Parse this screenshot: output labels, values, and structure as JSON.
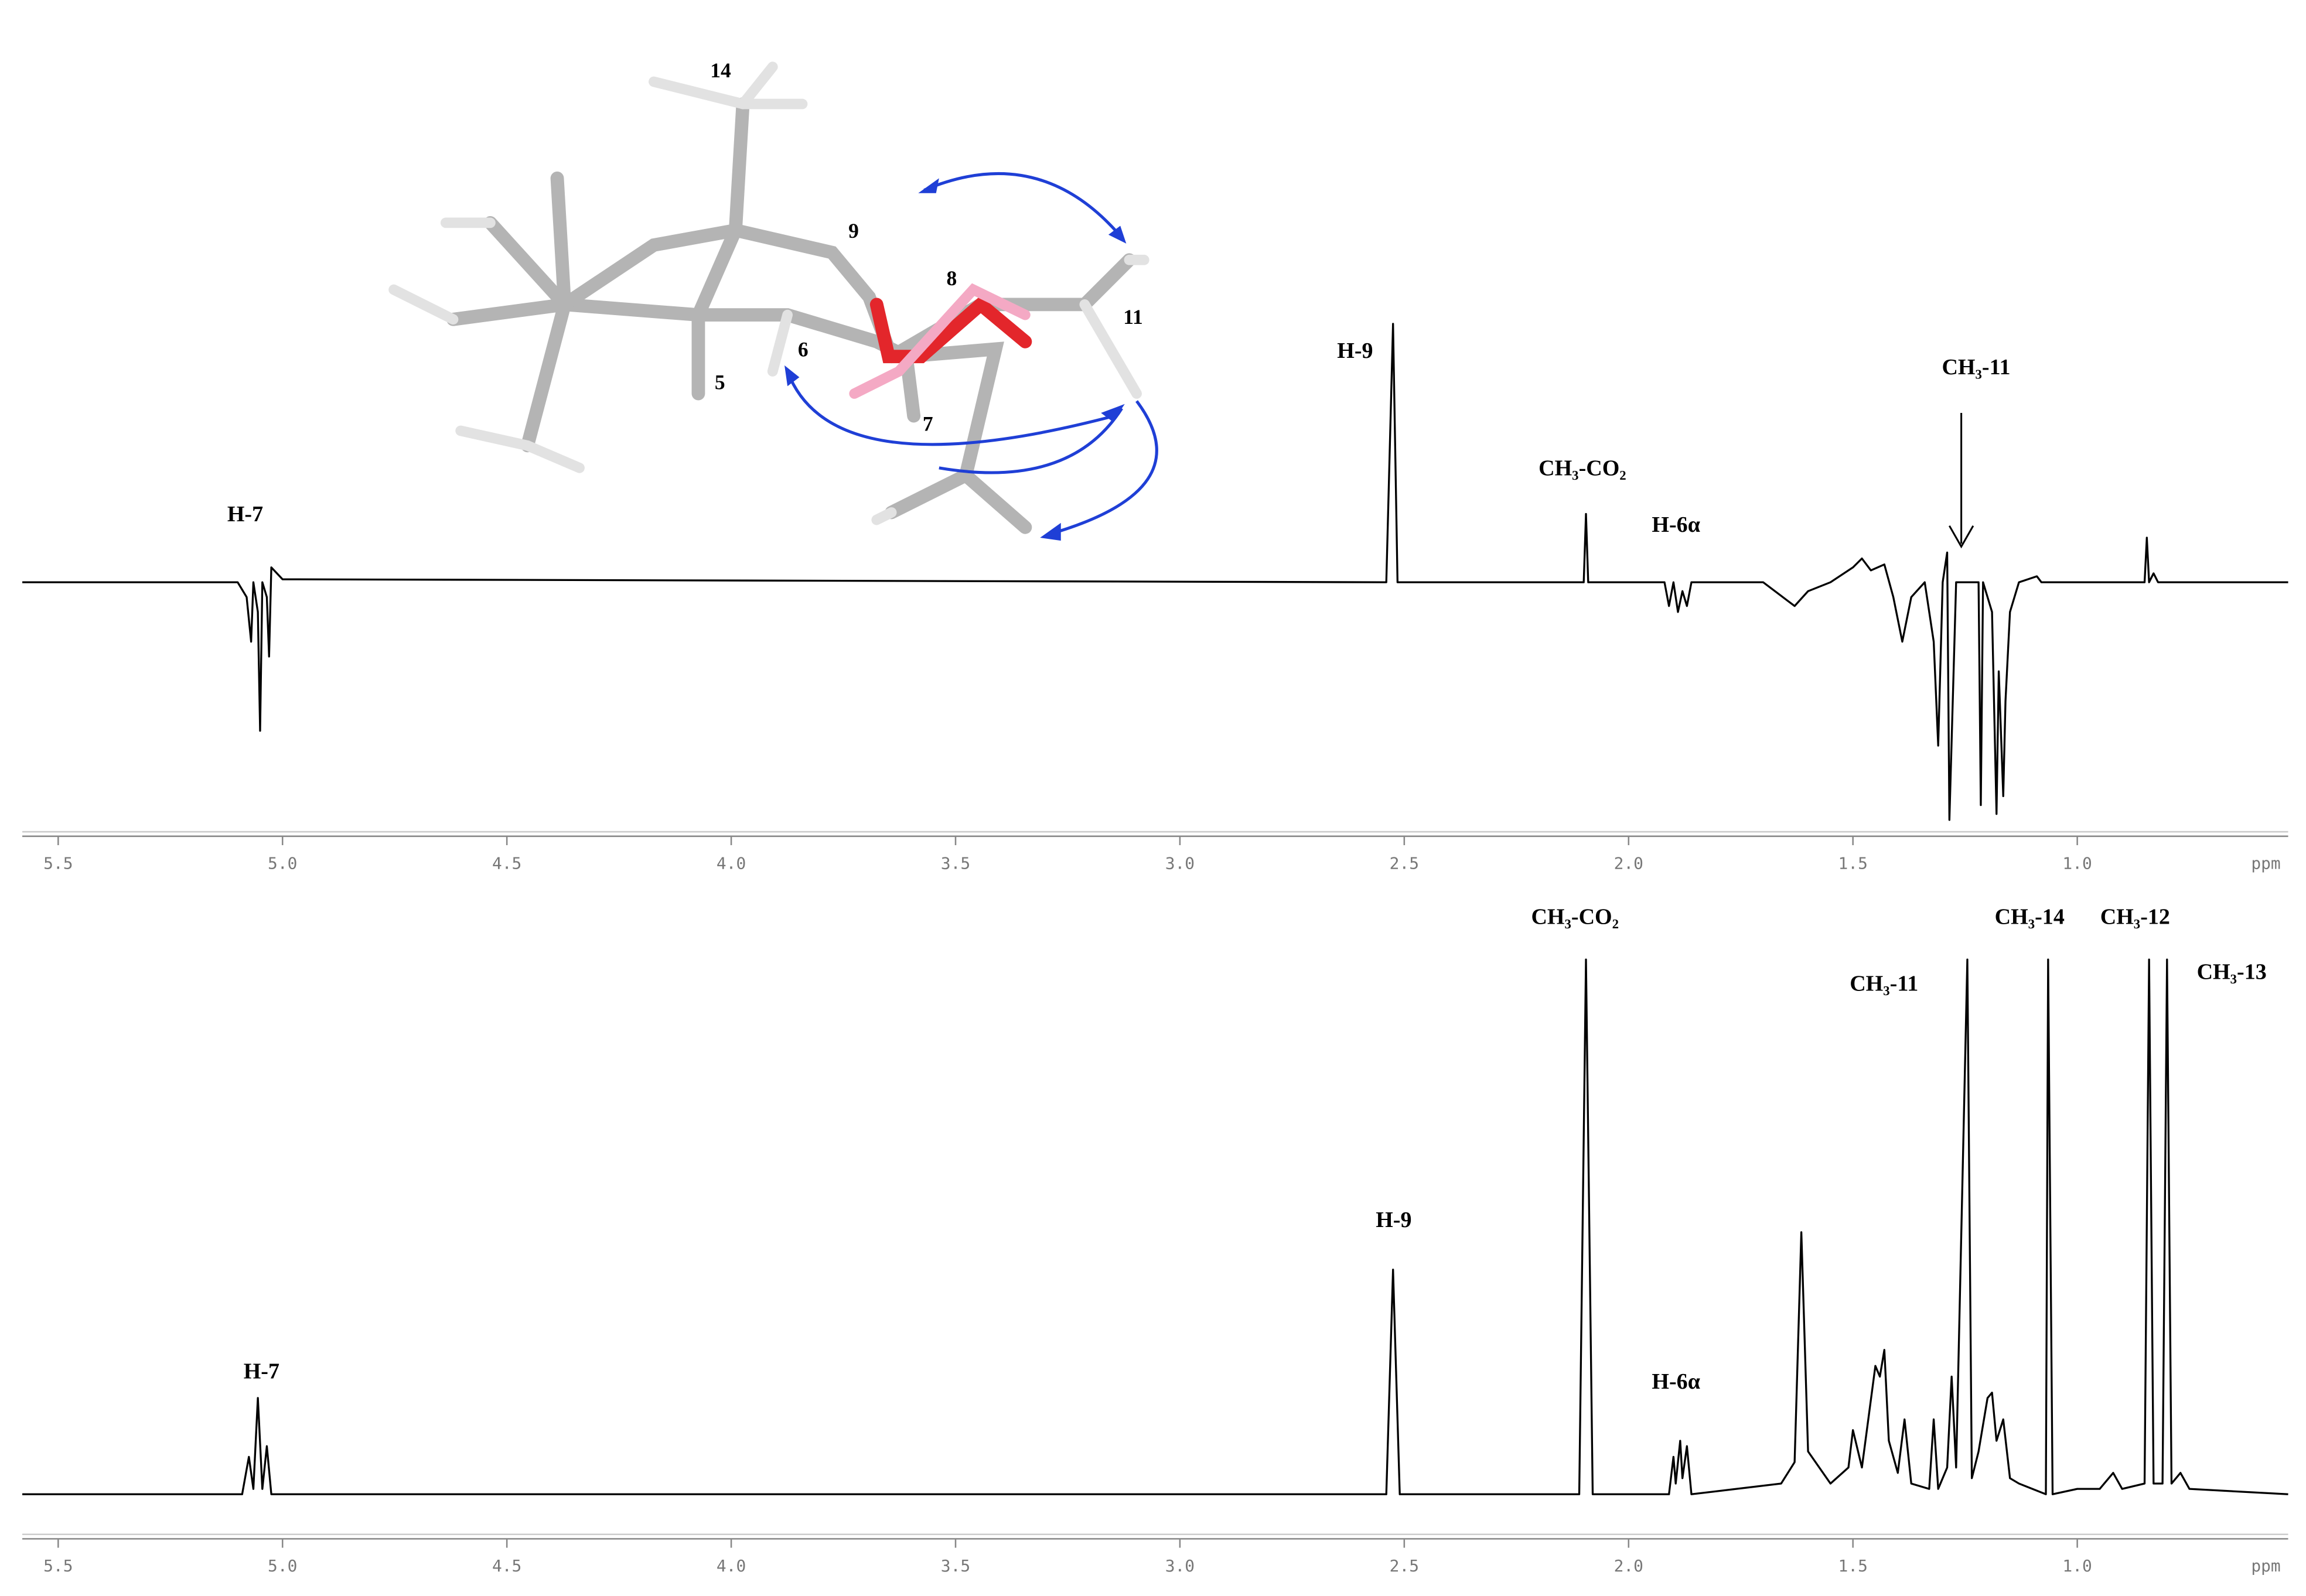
{
  "chart_data": [
    {
      "type": "line",
      "color": "#000000",
      "xlabel": "ppm",
      "xlim": [
        5.58,
        0.53
      ],
      "ylim": [
        -100,
        100
      ],
      "xticks": [
        5.5,
        {
          "value": 5,
          "label": "5.0"
        },
        4.5,
        {
          "value": 4,
          "label": "4.0"
        },
        3.5,
        {
          "value": 3,
          "label": "3.0"
        },
        2.5,
        {
          "value": 2,
          "label": "2.0"
        },
        1.5,
        {
          "value": 1,
          "label": "1.0"
        }
      ],
      "x": [
        5.58,
        5.1,
        5.08,
        5.07,
        5.065,
        5.055,
        5.05,
        5.045,
        5.035,
        5.03,
        5.025,
        5.0,
        2.54,
        2.525,
        2.515,
        2.1,
        2.095,
        2.09,
        1.92,
        1.91,
        1.9,
        1.89,
        1.88,
        1.87,
        1.86,
        1.7,
        1.63,
        1.6,
        1.55,
        1.5,
        1.48,
        1.46,
        1.43,
        1.41,
        1.39,
        1.37,
        1.34,
        1.32,
        1.31,
        1.3,
        1.29,
        1.285,
        1.27,
        1.22,
        1.215,
        1.21,
        1.19,
        1.18,
        1.175,
        1.165,
        1.16,
        1.15,
        1.13,
        1.09,
        1.08,
        0.85,
        0.845,
        0.84,
        0.83,
        0.82,
        0.53
      ],
      "values": [
        0,
        0,
        -5,
        -20,
        0,
        -10,
        -50,
        0,
        -5,
        -25,
        5,
        1,
        0,
        87,
        0,
        0,
        23,
        0,
        0,
        -8,
        0,
        -10,
        -3,
        -8,
        0,
        0,
        -8,
        -3,
        0,
        5,
        8,
        4,
        6,
        -5,
        -20,
        -5,
        0,
        -20,
        -55,
        0,
        10,
        -80,
        0,
        0,
        -75,
        0,
        -10,
        -78,
        -30,
        -72,
        -40,
        -10,
        0,
        2,
        0,
        0,
        15,
        0,
        3,
        0,
        0
      ],
      "annotations": [
        "H-7",
        "H-9",
        "CH₃-CO₂",
        "H-6α",
        "CH₃-11"
      ]
    },
    {
      "type": "line",
      "color": "#000000",
      "xlabel": "ppm",
      "xlim": [
        5.58,
        0.53
      ],
      "ylim": [
        0,
        100
      ],
      "xticks": [
        5.5,
        {
          "value": 5,
          "label": "5.0"
        },
        4.5,
        {
          "value": 4,
          "label": "4.0"
        },
        3.5,
        {
          "value": 3,
          "label": "3.0"
        },
        2.5,
        {
          "value": 2,
          "label": "2.0"
        },
        1.5,
        {
          "value": 1,
          "label": "1.0"
        }
      ],
      "x": [
        5.58,
        5.09,
        5.075,
        5.065,
        5.055,
        5.045,
        5.035,
        5.025,
        2.54,
        2.525,
        2.51,
        2.11,
        2.095,
        2.08,
        1.91,
        1.9,
        1.895,
        1.885,
        1.88,
        1.87,
        1.86,
        1.66,
        1.63,
        1.615,
        1.6,
        1.55,
        1.51,
        1.5,
        1.48,
        1.45,
        1.44,
        1.43,
        1.42,
        1.4,
        1.385,
        1.37,
        1.33,
        1.32,
        1.31,
        1.29,
        1.28,
        1.27,
        1.245,
        1.235,
        1.22,
        1.2,
        1.19,
        1.18,
        1.165,
        1.15,
        1.13,
        1.07,
        1.065,
        1.055,
        1.0,
        0.95,
        0.92,
        0.9,
        0.85,
        0.84,
        0.83,
        0.81,
        0.8,
        0.79,
        0.77,
        0.75,
        0.53
      ],
      "values": [
        0,
        0,
        7,
        1,
        18,
        1,
        9,
        0,
        0,
        42,
        0,
        0,
        100,
        0,
        0,
        7,
        2,
        10,
        3,
        9,
        0,
        2,
        6,
        49,
        8,
        2,
        5,
        12,
        5,
        24,
        22,
        27,
        10,
        4,
        14,
        2,
        1,
        14,
        1,
        5,
        22,
        5,
        100,
        3,
        8,
        18,
        19,
        10,
        14,
        3,
        2,
        0,
        100,
        0,
        1,
        1,
        4,
        1,
        2,
        100,
        2,
        2,
        100,
        2,
        4,
        1,
        0
      ],
      "annotations": [
        "H-7",
        "H-9",
        "CH₃-CO₂",
        "H-6α",
        "CH₃-11",
        "CH₃-14",
        "CH₃-12",
        "CH₃-13"
      ]
    }
  ],
  "molecule": {
    "labels": [
      "14",
      "9",
      "8",
      "11",
      "6",
      "5",
      "7"
    ]
  }
}
